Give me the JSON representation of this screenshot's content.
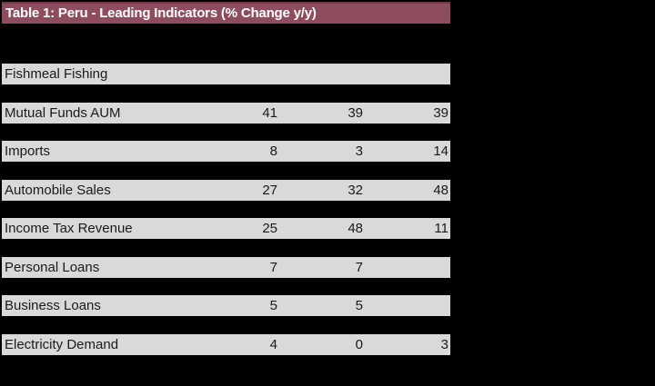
{
  "title": "Table 1: Peru - Leading Indicators (% Change y/y)",
  "colors": {
    "page_bg": "#000000",
    "title_bg": "#8E4D5F",
    "title_border": "#6E3B4A",
    "title_text": "#FFFFFF",
    "row_bg": "#D9D9D9",
    "row_text": "#1A1A1A"
  },
  "chart_data": {
    "type": "table",
    "title": "Table 1: Peru - Leading Indicators (% Change y/y)",
    "rows": [
      {
        "label": "Fishmeal Fishing",
        "values": [
          "",
          "",
          ""
        ]
      },
      {
        "label": "Mutual Funds AUM",
        "values": [
          "41",
          "39",
          "39"
        ]
      },
      {
        "label": "Imports",
        "values": [
          "8",
          "3",
          "14"
        ]
      },
      {
        "label": "Automobile Sales",
        "values": [
          "27",
          "32",
          "48"
        ]
      },
      {
        "label": "Income Tax Revenue",
        "values": [
          "25",
          "48",
          "11"
        ]
      },
      {
        "label": "Personal Loans",
        "values": [
          "7",
          "7",
          ""
        ]
      },
      {
        "label": "Business Loans",
        "values": [
          "5",
          "5",
          ""
        ]
      },
      {
        "label": "Electricity Demand",
        "values": [
          "4",
          "0",
          "3"
        ]
      }
    ]
  }
}
